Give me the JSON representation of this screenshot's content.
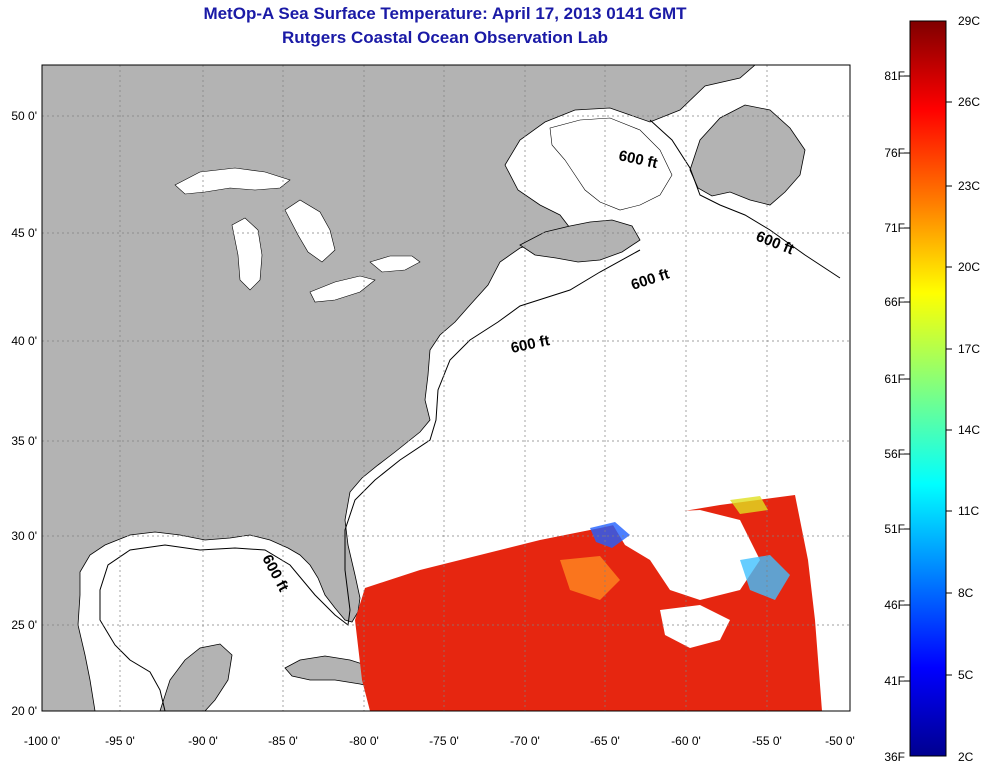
{
  "title": "MetOp-A Sea Surface Temperature:  April 17, 2013 0141 GMT",
  "subtitle": "Rutgers Coastal Ocean Observation Lab",
  "map": {
    "lon_labels": [
      "-100 0'",
      "-95 0'",
      "-90 0'",
      "-85 0'",
      "-80 0'",
      "-75 0'",
      "-70 0'",
      "-65 0'",
      "-60 0'",
      "-55 0'",
      "-50 0'"
    ],
    "lat_labels": [
      "50 0'",
      "45 0'",
      "40 0'",
      "35 0'",
      "30 0'",
      "25 0'",
      "20 0'"
    ],
    "isobath_label": "600 ft",
    "land_color": "#b3b3b3",
    "ocean_color": "#ffffff"
  },
  "colorbar": {
    "fahrenheit": [
      "81F",
      "76F",
      "71F",
      "66F",
      "61F",
      "56F",
      "51F",
      "46F",
      "41F",
      "36F"
    ],
    "celsius": [
      "29C",
      "26C",
      "23C",
      "20C",
      "17C",
      "14C",
      "11C",
      "8C",
      "5C",
      "2C"
    ],
    "colors": [
      "#7f0000",
      "#ff0000",
      "#ff8000",
      "#ffff00",
      "#80ff80",
      "#00ffff",
      "#0080ff",
      "#0000ff",
      "#00008f"
    ]
  }
}
